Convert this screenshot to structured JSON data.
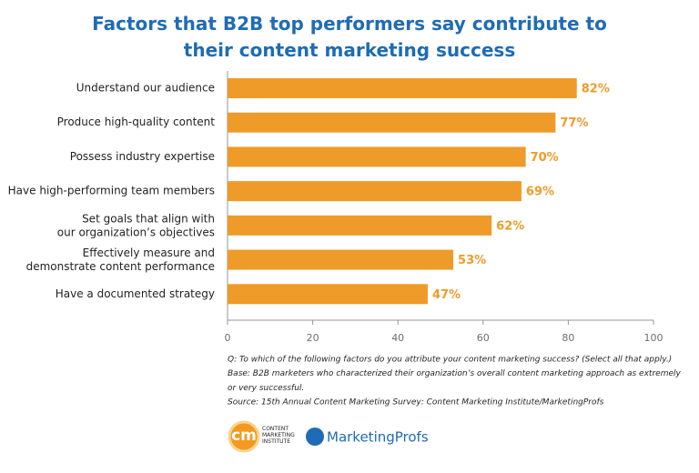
{
  "chart_data": {
    "type": "barh",
    "title": "Factors that B2B top performers say contribute to\ntheir content marketing success",
    "categories": [
      "Understand our audience",
      "Produce high-quality content",
      "Possess industry expertise",
      "Have high-performing team members",
      "Set goals that align with\nour organization’s objectives",
      "Effectively measure and\ndemonstrate content performance",
      "Have a documented strategy"
    ],
    "values": [
      82,
      77,
      70,
      69,
      62,
      53,
      47
    ],
    "value_labels": [
      "82%",
      "77%",
      "70%",
      "69%",
      "62%",
      "53%",
      "47%"
    ],
    "color": "#ee9b2a",
    "xlim": [
      0,
      100
    ],
    "xticks": [
      0,
      20,
      40,
      60,
      80,
      100
    ],
    "notes": [
      "Q: To which of the following factors do you attribute your content marketing success? (Select all that apply.)",
      "Base: B2B marketers who characterized their organization’s overall content marketing approach as extremely",
      "or very successful.",
      "Source: 15th Annual Content Marketing Survey: Content Marketing Institute/MarketingProfs"
    ],
    "logos": {
      "cmi_mark": "cm",
      "cmi_name": "CONTENT\nMARKETING\nINSTITUTE",
      "profs": "MarketingProfs"
    }
  }
}
